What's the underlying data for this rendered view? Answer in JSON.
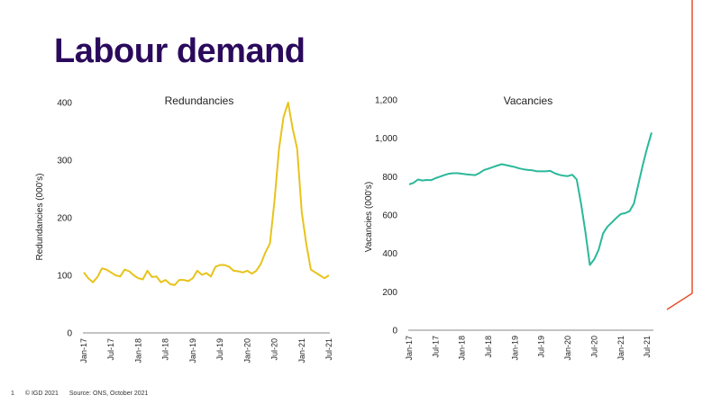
{
  "slide": {
    "title": "Labour demand",
    "page_number": "1",
    "copyright": "© IGD 2021",
    "source": "Source: ONS, October 2021"
  },
  "colors": {
    "title": "#2b0a5c",
    "accent_line": "#e8502a"
  },
  "chart_data": [
    {
      "type": "line",
      "title": "Redundancies",
      "ylabel": "Redundancies (000's)",
      "xlabel": "",
      "ylim": [
        0,
        400
      ],
      "yticks": [
        "0",
        "100",
        "200",
        "300",
        "400"
      ],
      "yticks_values": [
        0,
        100,
        200,
        300,
        400
      ],
      "xtick_labels": [
        "Jan-17",
        "Jul-17",
        "Jan-18",
        "Jul-18",
        "Jan-19",
        "Jul-19",
        "Jan-20",
        "Jul-20",
        "Jan-21",
        "Jul-21"
      ],
      "xtick_index": [
        0,
        6,
        12,
        18,
        24,
        30,
        36,
        42,
        48,
        54
      ],
      "color": "#e8c31c",
      "grid": false,
      "values": [
        105,
        95,
        88,
        97,
        112,
        110,
        105,
        100,
        98,
        110,
        107,
        100,
        95,
        93,
        108,
        97,
        98,
        88,
        92,
        85,
        83,
        92,
        92,
        90,
        95,
        108,
        101,
        104,
        98,
        115,
        118,
        118,
        115,
        108,
        107,
        105,
        108,
        103,
        108,
        120,
        140,
        155,
        230,
        320,
        375,
        400,
        355,
        320,
        210,
        155,
        110,
        105,
        100,
        95,
        100
      ]
    },
    {
      "type": "line",
      "title": "Vacancies",
      "ylabel": "Vacancies (000's)",
      "xlabel": "",
      "ylim": [
        0,
        1200
      ],
      "yticks": [
        "0",
        "200",
        "400",
        "600",
        "800",
        "1,000",
        "1,200"
      ],
      "yticks_values": [
        0,
        200,
        400,
        600,
        800,
        1000,
        1200
      ],
      "xtick_labels": [
        "Jan-17",
        "Jul-17",
        "Jan-18",
        "Jul-18",
        "Jan-19",
        "Jul-19",
        "Jan-20",
        "Jul-20",
        "Jan-21",
        "Jul-21"
      ],
      "xtick_index": [
        0,
        6,
        12,
        18,
        24,
        30,
        36,
        42,
        48,
        54
      ],
      "color": "#2bb89a",
      "grid": false,
      "values": [
        760,
        768,
        785,
        780,
        783,
        782,
        792,
        800,
        808,
        815,
        818,
        818,
        815,
        812,
        810,
        808,
        820,
        835,
        842,
        850,
        858,
        865,
        860,
        855,
        850,
        843,
        838,
        835,
        833,
        828,
        828,
        828,
        830,
        818,
        810,
        805,
        803,
        810,
        785,
        660,
        510,
        340,
        370,
        420,
        505,
        540,
        562,
        585,
        605,
        610,
        620,
        660,
        760,
        860,
        950,
        1030
      ]
    }
  ]
}
